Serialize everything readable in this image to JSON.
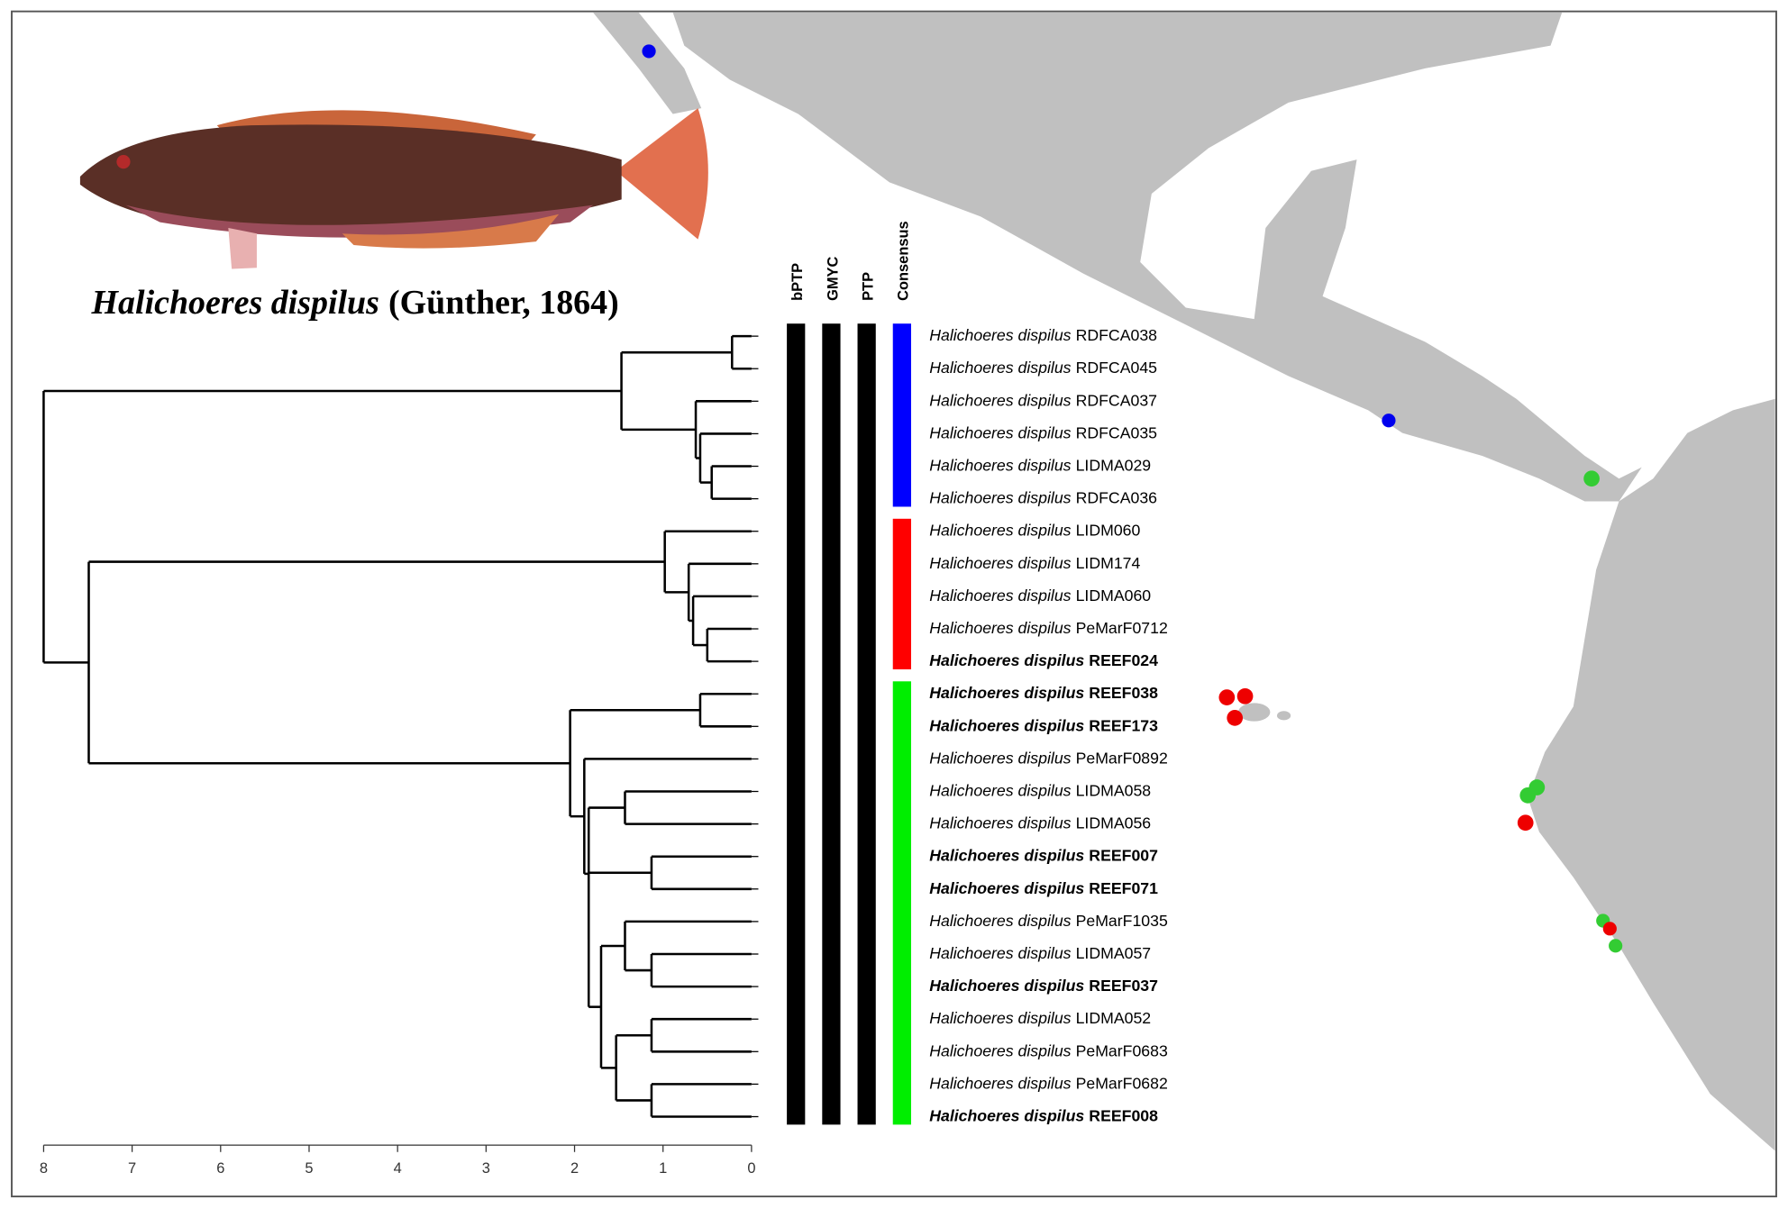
{
  "figure": {
    "caption": {
      "species": "Halichoeres dispilus",
      "authority": "(Günther, 1864)"
    },
    "columns": [
      {
        "label": "bPTP",
        "groups": [
          {
            "from": 0,
            "to": 24,
            "color": "#000000"
          }
        ]
      },
      {
        "label": "GMYC",
        "groups": [
          {
            "from": 0,
            "to": 24,
            "color": "#000000"
          }
        ]
      },
      {
        "label": "PTP",
        "groups": [
          {
            "from": 0,
            "to": 24,
            "color": "#000000"
          }
        ]
      },
      {
        "label": "Consensus",
        "groups": [
          {
            "from": 0,
            "to": 5,
            "color": "#0000ff"
          },
          {
            "from": 6,
            "to": 10,
            "color": "#ff0000"
          },
          {
            "from": 11,
            "to": 24,
            "color": "#00ee00"
          }
        ]
      }
    ],
    "leaves": [
      {
        "species": "Halichoeres dispilus",
        "id": "RDFCA038",
        "bold": false
      },
      {
        "species": "Halichoeres dispilus",
        "id": "RDFCA045",
        "bold": false
      },
      {
        "species": "Halichoeres dispilus",
        "id": "RDFCA037",
        "bold": false
      },
      {
        "species": "Halichoeres dispilus",
        "id": "RDFCA035",
        "bold": false
      },
      {
        "species": "Halichoeres dispilus",
        "id": "LIDMA029",
        "bold": false
      },
      {
        "species": "Halichoeres dispilus",
        "id": "RDFCA036",
        "bold": false
      },
      {
        "species": "Halichoeres dispilus",
        "id": "LIDM060",
        "bold": false
      },
      {
        "species": "Halichoeres dispilus",
        "id": "LIDM174",
        "bold": false
      },
      {
        "species": "Halichoeres dispilus",
        "id": "LIDMA060",
        "bold": false
      },
      {
        "species": "Halichoeres dispilus",
        "id": "PeMarF0712",
        "bold": false
      },
      {
        "species": "Halichoeres dispilus",
        "id": "REEF024",
        "bold": true
      },
      {
        "species": "Halichoeres dispilus",
        "id": "REEF038",
        "bold": true
      },
      {
        "species": "Halichoeres dispilus",
        "id": "REEF173",
        "bold": true
      },
      {
        "species": "Halichoeres dispilus",
        "id": "PeMarF0892",
        "bold": false
      },
      {
        "species": "Halichoeres dispilus",
        "id": "LIDMA058",
        "bold": false
      },
      {
        "species": "Halichoeres dispilus",
        "id": "LIDMA056",
        "bold": false
      },
      {
        "species": "Halichoeres dispilus",
        "id": "REEF007",
        "bold": true
      },
      {
        "species": "Halichoeres dispilus",
        "id": "REEF071",
        "bold": true
      },
      {
        "species": "Halichoeres dispilus",
        "id": "PeMarF1035",
        "bold": false
      },
      {
        "species": "Halichoeres dispilus",
        "id": "LIDMA057",
        "bold": false
      },
      {
        "species": "Halichoeres dispilus",
        "id": "REEF037",
        "bold": true
      },
      {
        "species": "Halichoeres dispilus",
        "id": "LIDMA052",
        "bold": false
      },
      {
        "species": "Halichoeres dispilus",
        "id": "PeMarF0683",
        "bold": false
      },
      {
        "species": "Halichoeres dispilus",
        "id": "PeMarF0682",
        "bold": false
      },
      {
        "species": "Halichoeres dispilus",
        "id": "REEF008",
        "bold": true
      }
    ],
    "tree": {
      "height": 8.0,
      "children": [
        {
          "height": 1.47,
          "children": [
            {
              "height": 0.22,
              "children": [
                0,
                1
              ]
            },
            {
              "height": 0.63,
              "children": [
                2,
                {
                  "height": 0.58,
                  "children": [
                    3,
                    {
                      "height": 0.45,
                      "children": [
                        4,
                        5
                      ]
                    }
                  ]
                }
              ]
            }
          ]
        },
        {
          "height": 7.49,
          "children": [
            {
              "height": 0.98,
              "children": [
                6,
                {
                  "height": 0.71,
                  "children": [
                    7,
                    {
                      "height": 0.66,
                      "children": [
                        8,
                        {
                          "height": 0.5,
                          "children": [
                            9,
                            10
                          ]
                        }
                      ]
                    }
                  ]
                }
              ]
            },
            {
              "height": 2.05,
              "children": [
                {
                  "height": 0.58,
                  "children": [
                    11,
                    12
                  ]
                },
                {
                  "height": 1.89,
                  "children": [
                    13,
                    {
                      "height": 1.84,
                      "children": [
                        {
                          "height": 1.43,
                          "children": [
                            14,
                            15
                          ]
                        },
                        {
                          "height": 1.84,
                          "children": [
                            {
                              "height": 1.13,
                              "children": [
                                16,
                                17
                              ]
                            },
                            {
                              "height": 1.7,
                              "children": [
                                {
                                  "height": 1.43,
                                  "children": [
                                    18,
                                    {
                                      "height": 1.13,
                                      "children": [
                                        19,
                                        20
                                      ]
                                    }
                                  ]
                                },
                                {
                                  "height": 1.53,
                                  "children": [
                                    {
                                      "height": 1.13,
                                      "children": [
                                        21,
                                        22
                                      ]
                                    },
                                    {
                                      "height": 1.13,
                                      "children": [
                                        23,
                                        24
                                      ]
                                    }
                                  ]
                                }
                              ]
                            }
                          ]
                        }
                      ]
                    }
                  ]
                }
              ]
            }
          ]
        }
      ]
    },
    "axis": {
      "xlim": [
        8,
        0
      ],
      "xticks": [
        8,
        7,
        6,
        5,
        4,
        3,
        2,
        1,
        0
      ]
    }
  }
}
